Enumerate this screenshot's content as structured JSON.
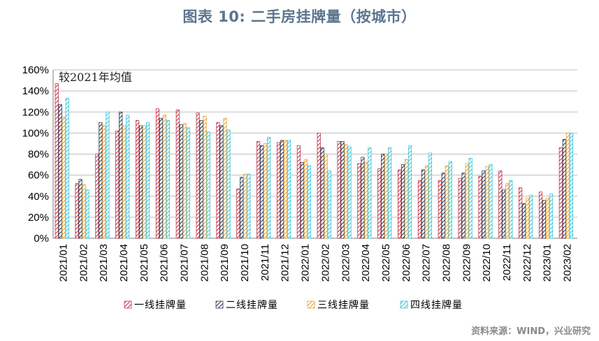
{
  "title": "图表 10: 二手房挂牌量（按城市）",
  "source": "资料来源：WIND，兴业研究",
  "chart_data": {
    "type": "bar",
    "title": "图表 10: 二手房挂牌量（按城市）",
    "annotation": "较2021年均值",
    "ylim": [
      0,
      160
    ],
    "yticks": [
      "0%",
      "20%",
      "40%",
      "60%",
      "80%",
      "100%",
      "120%",
      "140%",
      "160%"
    ],
    "grid": true,
    "categories": [
      "2021/01",
      "2021/02",
      "2021/03",
      "2021/04",
      "2021/05",
      "2021/06",
      "2021/07",
      "2021/08",
      "2021/09",
      "2021/10",
      "2021/11",
      "2021/12",
      "2022/01",
      "2022/02",
      "2022/03",
      "2022/04",
      "2022/05",
      "2022/06",
      "2022/07",
      "2022/08",
      "2022/09",
      "2022/10",
      "2022/11",
      "2022/12",
      "2023/01",
      "2023/02"
    ],
    "series": [
      {
        "name": "一线挂牌量",
        "color": "#c0394b",
        "hatch": "red",
        "values": [
          147,
          52,
          80,
          102,
          112,
          123,
          122,
          119,
          110,
          47,
          92,
          91,
          88,
          100,
          92,
          71,
          66,
          65,
          55,
          55,
          57,
          59,
          64,
          48,
          44,
          86
        ]
      },
      {
        "name": "二线挂牌量",
        "color": "#2b3a55",
        "hatch": "navy",
        "values": [
          127,
          56,
          110,
          120,
          107,
          114,
          108,
          112,
          107,
          58,
          88,
          93,
          72,
          86,
          92,
          77,
          80,
          70,
          65,
          62,
          62,
          64,
          46,
          33,
          36,
          94
        ]
      },
      {
        "name": "三线挂牌量",
        "color": "#e8a33a",
        "hatch": "orange",
        "values": [
          115,
          51,
          107,
          107,
          107,
          117,
          109,
          116,
          114,
          61,
          90,
          93,
          75,
          80,
          89,
          72,
          80,
          75,
          69,
          69,
          71,
          68,
          52,
          38,
          38,
          100
        ]
      },
      {
        "name": "四线挂牌量",
        "color": "#3cc6d8",
        "hatch": "cyan",
        "values": [
          133,
          46,
          120,
          117,
          110,
          112,
          105,
          101,
          103,
          61,
          96,
          93,
          69,
          64,
          87,
          86,
          86,
          88,
          81,
          73,
          76,
          70,
          55,
          41,
          42,
          100
        ]
      }
    ]
  }
}
